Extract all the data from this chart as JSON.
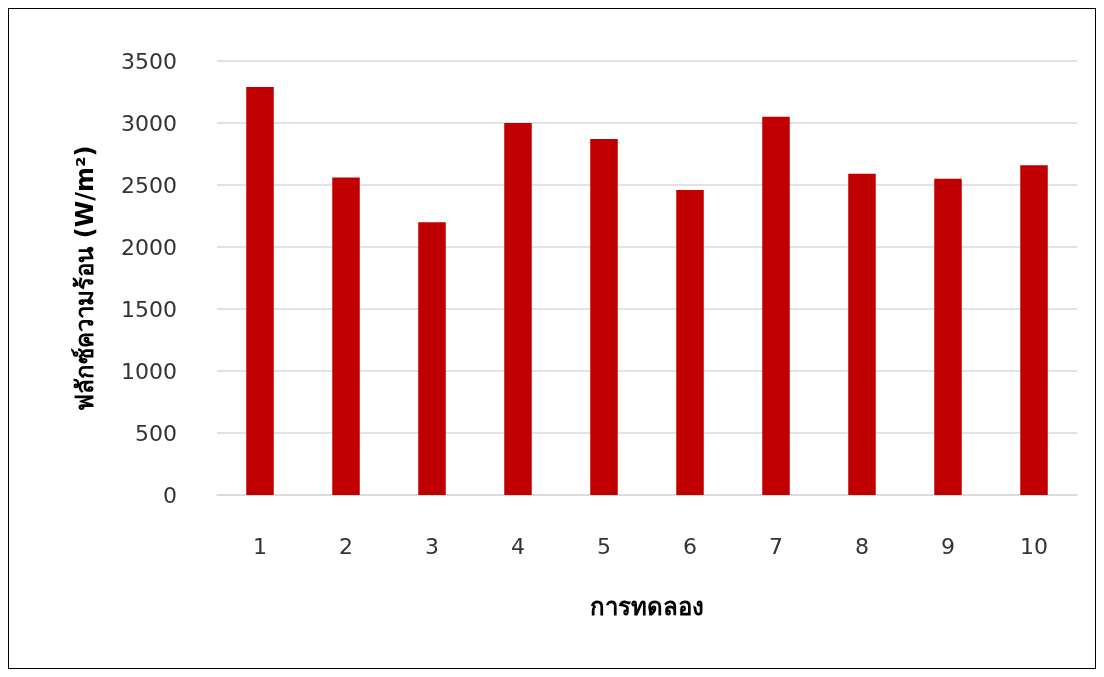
{
  "chart_data": {
    "type": "bar",
    "xlabel": "การทดลอง",
    "ylabel": "ฟลักซ์ความร้อน (W/m²)",
    "categories": [
      "1",
      "2",
      "3",
      "4",
      "5",
      "6",
      "7",
      "8",
      "9",
      "10"
    ],
    "values": [
      3290,
      2560,
      2200,
      3000,
      2870,
      2460,
      3050,
      2590,
      2550,
      2660
    ],
    "color": "#c00000",
    "ylim": [
      0,
      3500
    ],
    "yticks": [
      0,
      500,
      1000,
      1500,
      2000,
      2500,
      3000,
      3500
    ],
    "grid": "y"
  }
}
